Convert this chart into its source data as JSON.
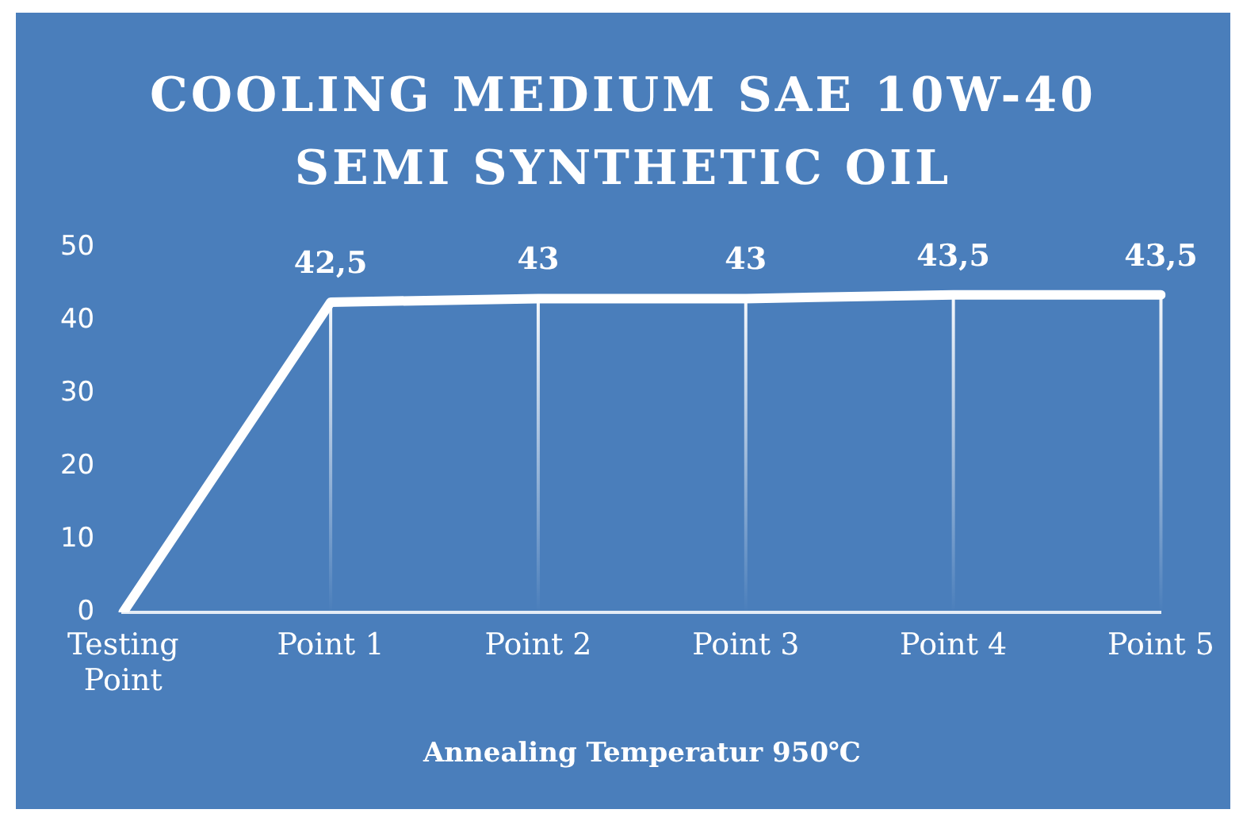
{
  "chart_data": {
    "type": "line",
    "title": "COOLING MEDIUM SAE 10W-40 SEMI SYNTHETIC OIL",
    "xlabel": "Annealing Temperatur 950℃",
    "categories": [
      "Testing Point",
      "Point 1",
      "Point 2",
      "Point 3",
      "Point 4",
      "Point 5"
    ],
    "series": [
      {
        "color": "#ffffff",
        "values": [
          0,
          42.5,
          43,
          43,
          43.5,
          43.5
        ],
        "value_labels": [
          null,
          "42,5",
          "43",
          "43",
          "43,5",
          "43,5"
        ]
      }
    ],
    "ylim": [
      0,
      50
    ],
    "yticks": [
      0,
      10,
      20,
      30,
      40,
      50
    ],
    "grid": "x",
    "legend": false,
    "marker": "none",
    "line_style": "solid"
  }
}
